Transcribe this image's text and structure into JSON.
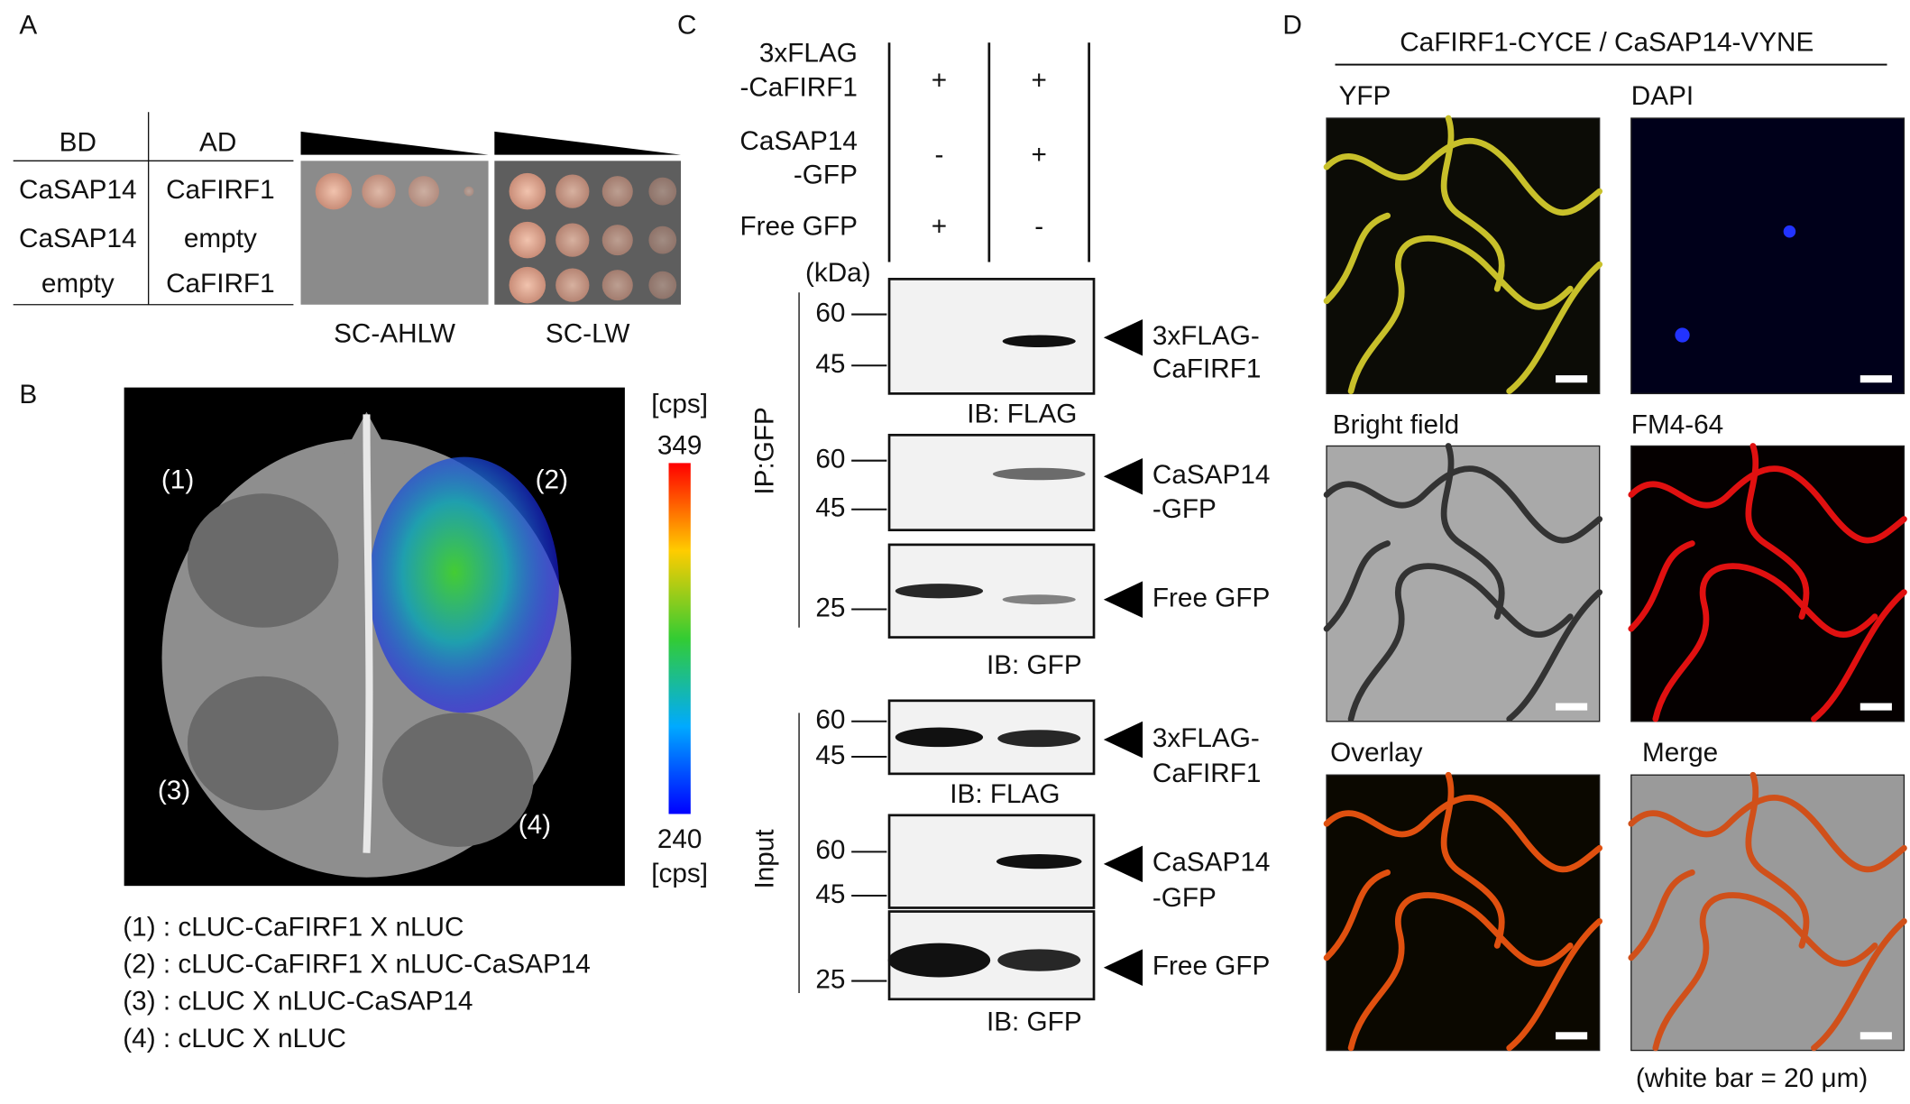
{
  "panels": {
    "A": {
      "label": "A",
      "table": {
        "headers": [
          "BD",
          "AD"
        ],
        "rows": [
          [
            "CaSAP14",
            "CaFIRF1"
          ],
          [
            "CaSAP14",
            "empty"
          ],
          [
            "empty",
            "CaFIRF1"
          ]
        ]
      },
      "media": [
        "SC-AHLW",
        "SC-LW"
      ]
    },
    "B": {
      "label": "B",
      "spots": [
        "(1)",
        "(2)",
        "(3)",
        "(4)"
      ],
      "colorbar": {
        "unit_top": "[cps]",
        "max": "349",
        "min": "240",
        "unit_bottom": "[cps]"
      },
      "legend": [
        "(1) : cLUC-CaFIRF1 X nLUC",
        "(2) : cLUC-CaFIRF1 X nLUC-CaSAP14",
        "(3) : cLUC X nLUC-CaSAP14",
        "(4) : cLUC X nLUC"
      ]
    },
    "C": {
      "label": "C",
      "constructs": [
        {
          "name": [
            "3xFLAG",
            "-CaFIRF1"
          ],
          "lanes": [
            "+",
            "+"
          ]
        },
        {
          "name": [
            "CaSAP14",
            "-GFP"
          ],
          "lanes": [
            "-",
            "+"
          ]
        },
        {
          "name": [
            "Free GFP"
          ],
          "lanes": [
            "+",
            "-"
          ]
        }
      ],
      "kda": "(kDa)",
      "ip_label": "IP:GFP",
      "input_label": "Input",
      "blots": [
        {
          "markers": [
            "60",
            "45"
          ],
          "target": [
            "3xFLAG-",
            "CaFIRF1"
          ],
          "ib": "IB: FLAG"
        },
        {
          "markers": [
            "60",
            "45"
          ],
          "target": [
            "CaSAP14",
            "-GFP"
          ]
        },
        {
          "markers": [
            "25"
          ],
          "target": [
            "Free GFP"
          ],
          "ib": "IB: GFP"
        },
        {
          "markers": [
            "60",
            "45"
          ],
          "target": [
            "3xFLAG-",
            "CaFIRF1"
          ],
          "ib": "IB: FLAG"
        },
        {
          "markers": [
            "60",
            "45"
          ],
          "target": [
            "CaSAP14",
            "-GFP"
          ]
        },
        {
          "markers": [
            "25"
          ],
          "target": [
            "Free GFP"
          ],
          "ib": "IB: GFP"
        }
      ]
    },
    "D": {
      "label": "D",
      "title": "CaFIRF1-CYCE / CaSAP14-VYNE",
      "images": [
        "YFP",
        "DAPI",
        "Bright field",
        "FM4-64",
        "Overlay",
        "Merge"
      ],
      "note": "(white bar = 20 μm)"
    }
  }
}
